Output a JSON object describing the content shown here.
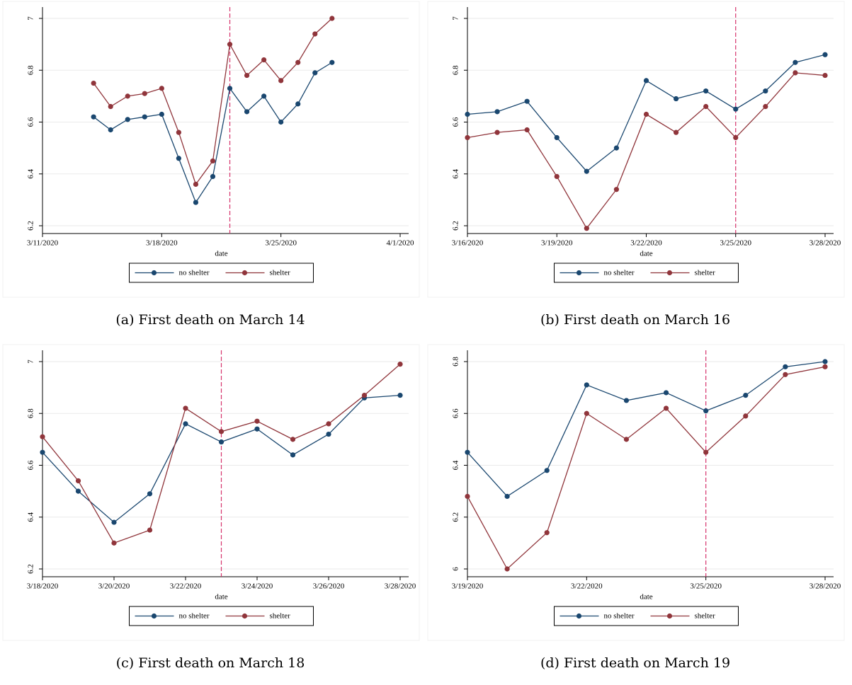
{
  "chart_data": [
    {
      "type": "line",
      "caption": "(a) First death on March 14",
      "x_label": "date",
      "x": [
        "3/14/2020",
        "3/15/2020",
        "3/16/2020",
        "3/17/2020",
        "3/18/2020",
        "3/19/2020",
        "3/20/2020",
        "3/21/2020",
        "3/22/2020",
        "3/23/2020",
        "3/24/2020",
        "3/25/2020",
        "3/26/2020",
        "3/27/2020",
        "3/28/2020"
      ],
      "series": [
        {
          "name": "no shelter",
          "color": "#1a476f",
          "values": [
            6.62,
            6.57,
            6.61,
            6.62,
            6.63,
            6.46,
            6.29,
            6.39,
            6.73,
            6.64,
            6.7,
            6.6,
            6.67,
            6.79,
            6.83
          ]
        },
        {
          "name": "shelter",
          "color": "#90353b",
          "values": [
            6.75,
            6.66,
            6.7,
            6.71,
            6.73,
            6.56,
            6.36,
            6.45,
            6.9,
            6.78,
            6.84,
            6.76,
            6.83,
            6.94,
            7.0
          ]
        }
      ],
      "xlim": [
        "3/11/2020",
        "4/1/2020"
      ],
      "xticks": [
        "3/11/2020",
        "3/18/2020",
        "3/25/2020",
        "4/1/2020"
      ],
      "ylim": [
        6.17,
        7.03
      ],
      "yticks": [
        6.2,
        6.4,
        6.6,
        6.8,
        7
      ],
      "vline": "3/22/2020",
      "vline_color": "#d6336c",
      "grid": true,
      "legend": "bottom"
    },
    {
      "type": "line",
      "caption": "(b) First death on March 16",
      "x_label": "date",
      "x": [
        "3/16/2020",
        "3/17/2020",
        "3/18/2020",
        "3/19/2020",
        "3/20/2020",
        "3/21/2020",
        "3/22/2020",
        "3/23/2020",
        "3/24/2020",
        "3/25/2020",
        "3/26/2020",
        "3/27/2020",
        "3/28/2020"
      ],
      "series": [
        {
          "name": "no shelter",
          "color": "#1a476f",
          "values": [
            6.63,
            6.64,
            6.68,
            6.54,
            6.41,
            6.5,
            6.76,
            6.69,
            6.72,
            6.65,
            6.72,
            6.83,
            6.86
          ]
        },
        {
          "name": "shelter",
          "color": "#90353b",
          "values": [
            6.54,
            6.56,
            6.57,
            6.39,
            6.19,
            6.34,
            6.63,
            6.56,
            6.66,
            6.54,
            6.66,
            6.79,
            6.78
          ]
        }
      ],
      "xlim": [
        "3/16/2020",
        "3/28/2020"
      ],
      "xticks": [
        "3/16/2020",
        "3/19/2020",
        "3/22/2020",
        "3/25/2020",
        "3/28/2020"
      ],
      "ylim": [
        6.17,
        7.03
      ],
      "yticks": [
        6.2,
        6.4,
        6.6,
        6.8,
        7
      ],
      "vline": "3/25/2020",
      "vline_color": "#d6336c",
      "grid": true,
      "legend": "bottom"
    },
    {
      "type": "line",
      "caption": "(c) First death on March 18",
      "x_label": "date",
      "x": [
        "3/18/2020",
        "3/19/2020",
        "3/20/2020",
        "3/21/2020",
        "3/22/2020",
        "3/23/2020",
        "3/24/2020",
        "3/25/2020",
        "3/26/2020",
        "3/27/2020",
        "3/28/2020"
      ],
      "series": [
        {
          "name": "no shelter",
          "color": "#1a476f",
          "values": [
            6.65,
            6.5,
            6.38,
            6.49,
            6.76,
            6.69,
            6.74,
            6.64,
            6.72,
            6.86,
            6.87
          ]
        },
        {
          "name": "shelter",
          "color": "#90353b",
          "values": [
            6.71,
            6.54,
            6.3,
            6.35,
            6.82,
            6.73,
            6.77,
            6.7,
            6.76,
            6.87,
            6.99
          ]
        }
      ],
      "xlim": [
        "3/18/2020",
        "3/28/2020"
      ],
      "xticks": [
        "3/18/2020",
        "3/20/2020",
        "3/22/2020",
        "3/24/2020",
        "3/26/2020",
        "3/28/2020"
      ],
      "ylim": [
        6.17,
        7.03
      ],
      "yticks": [
        6.2,
        6.4,
        6.6,
        6.8,
        7
      ],
      "vline": "3/23/2020",
      "vline_color": "#d6336c",
      "grid": true,
      "legend": "bottom"
    },
    {
      "type": "line",
      "caption": "(d) First death on March 19",
      "x_label": "date",
      "x": [
        "3/19/2020",
        "3/20/2020",
        "3/21/2020",
        "3/22/2020",
        "3/23/2020",
        "3/24/2020",
        "3/25/2020",
        "3/26/2020",
        "3/27/2020",
        "3/28/2020"
      ],
      "series": [
        {
          "name": "no shelter",
          "color": "#1a476f",
          "values": [
            6.45,
            6.28,
            6.38,
            6.71,
            6.65,
            6.68,
            6.61,
            6.67,
            6.78,
            6.8
          ]
        },
        {
          "name": "shelter",
          "color": "#90353b",
          "values": [
            6.28,
            6.0,
            6.14,
            6.6,
            6.5,
            6.62,
            6.45,
            6.59,
            6.75,
            6.78
          ]
        }
      ],
      "xlim": [
        "3/19/2020",
        "3/28/2020"
      ],
      "xticks": [
        "3/19/2020",
        "3/22/2020",
        "3/25/2020",
        "3/28/2020"
      ],
      "ylim": [
        5.97,
        6.83
      ],
      "yticks": [
        6,
        6.2,
        6.4,
        6.6,
        6.8
      ],
      "vline": "3/25/2020",
      "vline_color": "#d6336c",
      "grid": true,
      "legend": "bottom"
    }
  ]
}
